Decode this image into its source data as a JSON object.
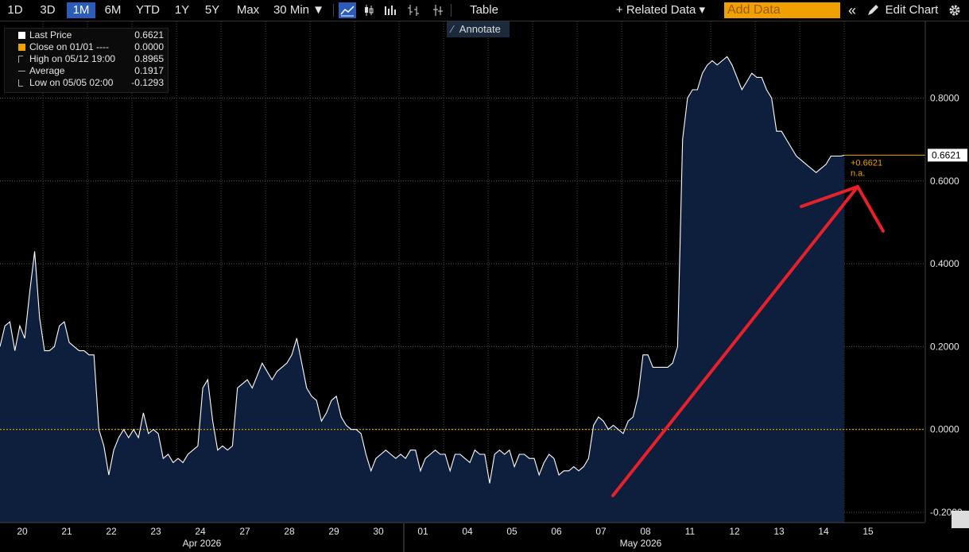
{
  "toolbar": {
    "periods": [
      "1D",
      "3D",
      "1M",
      "6M",
      "YTD",
      "1Y",
      "5Y",
      "Max"
    ],
    "active_period": "1M",
    "interval": "30 Min ▼",
    "table_label": "Table",
    "related_data": "+ Related Data ▾",
    "add_data_placeholder": "Add Data",
    "collapse": "«",
    "edit_chart": "Edit Chart",
    "settings_icon": "gear-icon",
    "annotate": "Annotate"
  },
  "legend": [
    {
      "label": "Last Price",
      "value": "0.6621",
      "color": "#ffffff"
    },
    {
      "label": "Close on 01/01 ----",
      "value": "0.0000",
      "color": "#f0a000"
    },
    {
      "label": "High on 05/12 19:00",
      "value": "0.8965",
      "color": "#cccccc"
    },
    {
      "label": "Average",
      "value": "0.1917",
      "color": "#cccccc"
    },
    {
      "label": "Low on 05/05 02:00",
      "value": "-0.1293",
      "color": "#cccccc"
    }
  ],
  "colors": {
    "area": "#0d1f3d",
    "line": "#ffffff",
    "reference": "#f0a000",
    "arrow": "#e8202a",
    "grid": "#555555"
  },
  "chart_data": {
    "type": "area",
    "series": [
      {
        "name": "Last Price"
      }
    ],
    "x": [
      "04-20",
      "04-21",
      "04-22",
      "04-23",
      "04-24",
      "04-27",
      "04-28",
      "04-29",
      "04-30",
      "05-01",
      "05-04",
      "05-05",
      "05-06",
      "05-07",
      "05-08",
      "05-11",
      "05-12",
      "05-13",
      "05-14"
    ],
    "values": [
      [
        0.2,
        0.25,
        0.26,
        0.19,
        0.25,
        0.22,
        0.33,
        0.43,
        0.27
      ],
      [
        0.19,
        0.19,
        0.2,
        0.25,
        0.26,
        0.21,
        0.2,
        0.19,
        0.19
      ],
      [
        0.18,
        0.18,
        0.0,
        -0.04,
        -0.11,
        -0.05,
        -0.02,
        0.0,
        -0.02
      ],
      [
        0.0,
        -0.02,
        0.04,
        -0.01,
        0.0,
        -0.01,
        -0.07,
        -0.06,
        -0.08
      ],
      [
        -0.07,
        -0.08,
        -0.06,
        -0.05,
        -0.04,
        0.1,
        0.12,
        0.02,
        -0.05
      ],
      [
        -0.04,
        -0.05,
        -0.04,
        0.1,
        0.11,
        0.12,
        0.1,
        0.13,
        0.16
      ],
      [
        0.14,
        0.12,
        0.14,
        0.15,
        0.16,
        0.18,
        0.22,
        0.16,
        0.1
      ],
      [
        0.08,
        0.07,
        0.02,
        0.04,
        0.07,
        0.08,
        0.03,
        0.01,
        0.0
      ],
      [
        0.0,
        -0.01,
        -0.06,
        -0.1,
        -0.07,
        -0.06,
        -0.05,
        -0.06,
        -0.07
      ],
      [
        -0.06,
        -0.07,
        -0.05,
        -0.05,
        -0.1,
        -0.07,
        -0.06,
        -0.05,
        -0.06
      ],
      [
        -0.06,
        -0.1,
        -0.06,
        -0.06,
        -0.07,
        -0.08,
        -0.05,
        -0.06,
        -0.06
      ],
      [
        -0.13,
        -0.06,
        -0.05,
        -0.06,
        -0.05,
        -0.09,
        -0.06,
        -0.06,
        -0.07
      ],
      [
        -0.07,
        -0.11,
        -0.08,
        -0.06,
        -0.07,
        -0.11,
        -0.1,
        -0.1,
        -0.09
      ],
      [
        -0.1,
        -0.09,
        -0.07,
        0.01,
        0.03,
        0.02,
        0.0,
        0.01,
        0.0
      ],
      [
        -0.01,
        0.02,
        0.03,
        0.08,
        0.18,
        0.18,
        0.15,
        0.15,
        0.15
      ],
      [
        0.15,
        0.16,
        0.2,
        0.7,
        0.8,
        0.82,
        0.82,
        0.86,
        0.88
      ],
      [
        0.89,
        0.88,
        0.89,
        0.9,
        0.88,
        0.85,
        0.82,
        0.84,
        0.86
      ],
      [
        0.85,
        0.85,
        0.82,
        0.8,
        0.72,
        0.72,
        0.7,
        0.68,
        0.66
      ],
      [
        0.65,
        0.64,
        0.63,
        0.62,
        0.63,
        0.64,
        0.66,
        0.66,
        0.66
      ]
    ],
    "reference_line": 0.0,
    "last_value": 0.6621,
    "last_label": "+0.6621",
    "last_sub": "n.a.",
    "y_ticks": [
      "0.8000",
      "0.6000",
      "0.4000",
      "0.2000",
      "0.0000",
      "-0.2000"
    ],
    "y_tick_values": [
      0.8,
      0.6,
      0.4,
      0.2,
      0.0,
      -0.2
    ],
    "ylim": [
      -0.225,
      0.985
    ],
    "x_tick_labels": [
      "20",
      "21",
      "22",
      "23",
      "24",
      "27",
      "28",
      "29",
      "30",
      "01",
      "04",
      "05",
      "06",
      "07",
      "08",
      "11",
      "12",
      "13",
      "14",
      "15"
    ],
    "month_labels": [
      "Apr 2026",
      "May 2026"
    ],
    "grid": true,
    "legend_position": "top-left"
  }
}
